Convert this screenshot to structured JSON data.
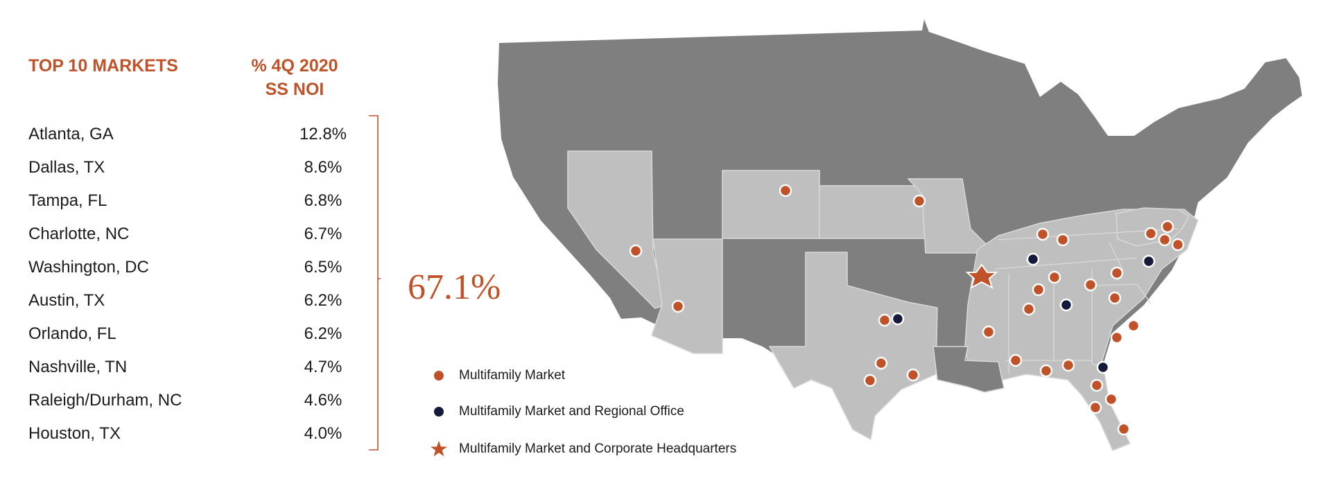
{
  "table": {
    "header_market": "TOP 10 MARKETS",
    "header_noi_line1": "% 4Q 2020",
    "header_noi_line2": "SS NOI",
    "rows": [
      {
        "market": "Atlanta, GA",
        "pct": "12.8%"
      },
      {
        "market": "Dallas, TX",
        "pct": "8.6%"
      },
      {
        "market": "Tampa, FL",
        "pct": "6.8%"
      },
      {
        "market": "Charlotte, NC",
        "pct": "6.7%"
      },
      {
        "market": "Washington, DC",
        "pct": "6.5%"
      },
      {
        "market": "Austin, TX",
        "pct": "6.2%"
      },
      {
        "market": "Orlando, FL",
        "pct": "6.2%"
      },
      {
        "market": "Nashville, TN",
        "pct": "4.7%"
      },
      {
        "market": "Raleigh/Durham, NC",
        "pct": "4.6%"
      },
      {
        "market": "Houston, TX",
        "pct": "4.0%"
      }
    ],
    "total": "67.1%"
  },
  "legend": {
    "items": [
      {
        "label": "Multifamily Market",
        "symbol": "orange-dot-icon"
      },
      {
        "label": "Multifamily Market and Regional Office",
        "symbol": "navy-dot-icon"
      },
      {
        "label": "Multifamily Market and Corporate Headquarters",
        "symbol": "orange-star-icon"
      }
    ]
  },
  "colors": {
    "accent": "#c0522a",
    "navy": "#141a3a",
    "map_dark": "#7f7f7f",
    "map_light": "#bfbfbf",
    "map_border": "#d9d9d9"
  }
}
